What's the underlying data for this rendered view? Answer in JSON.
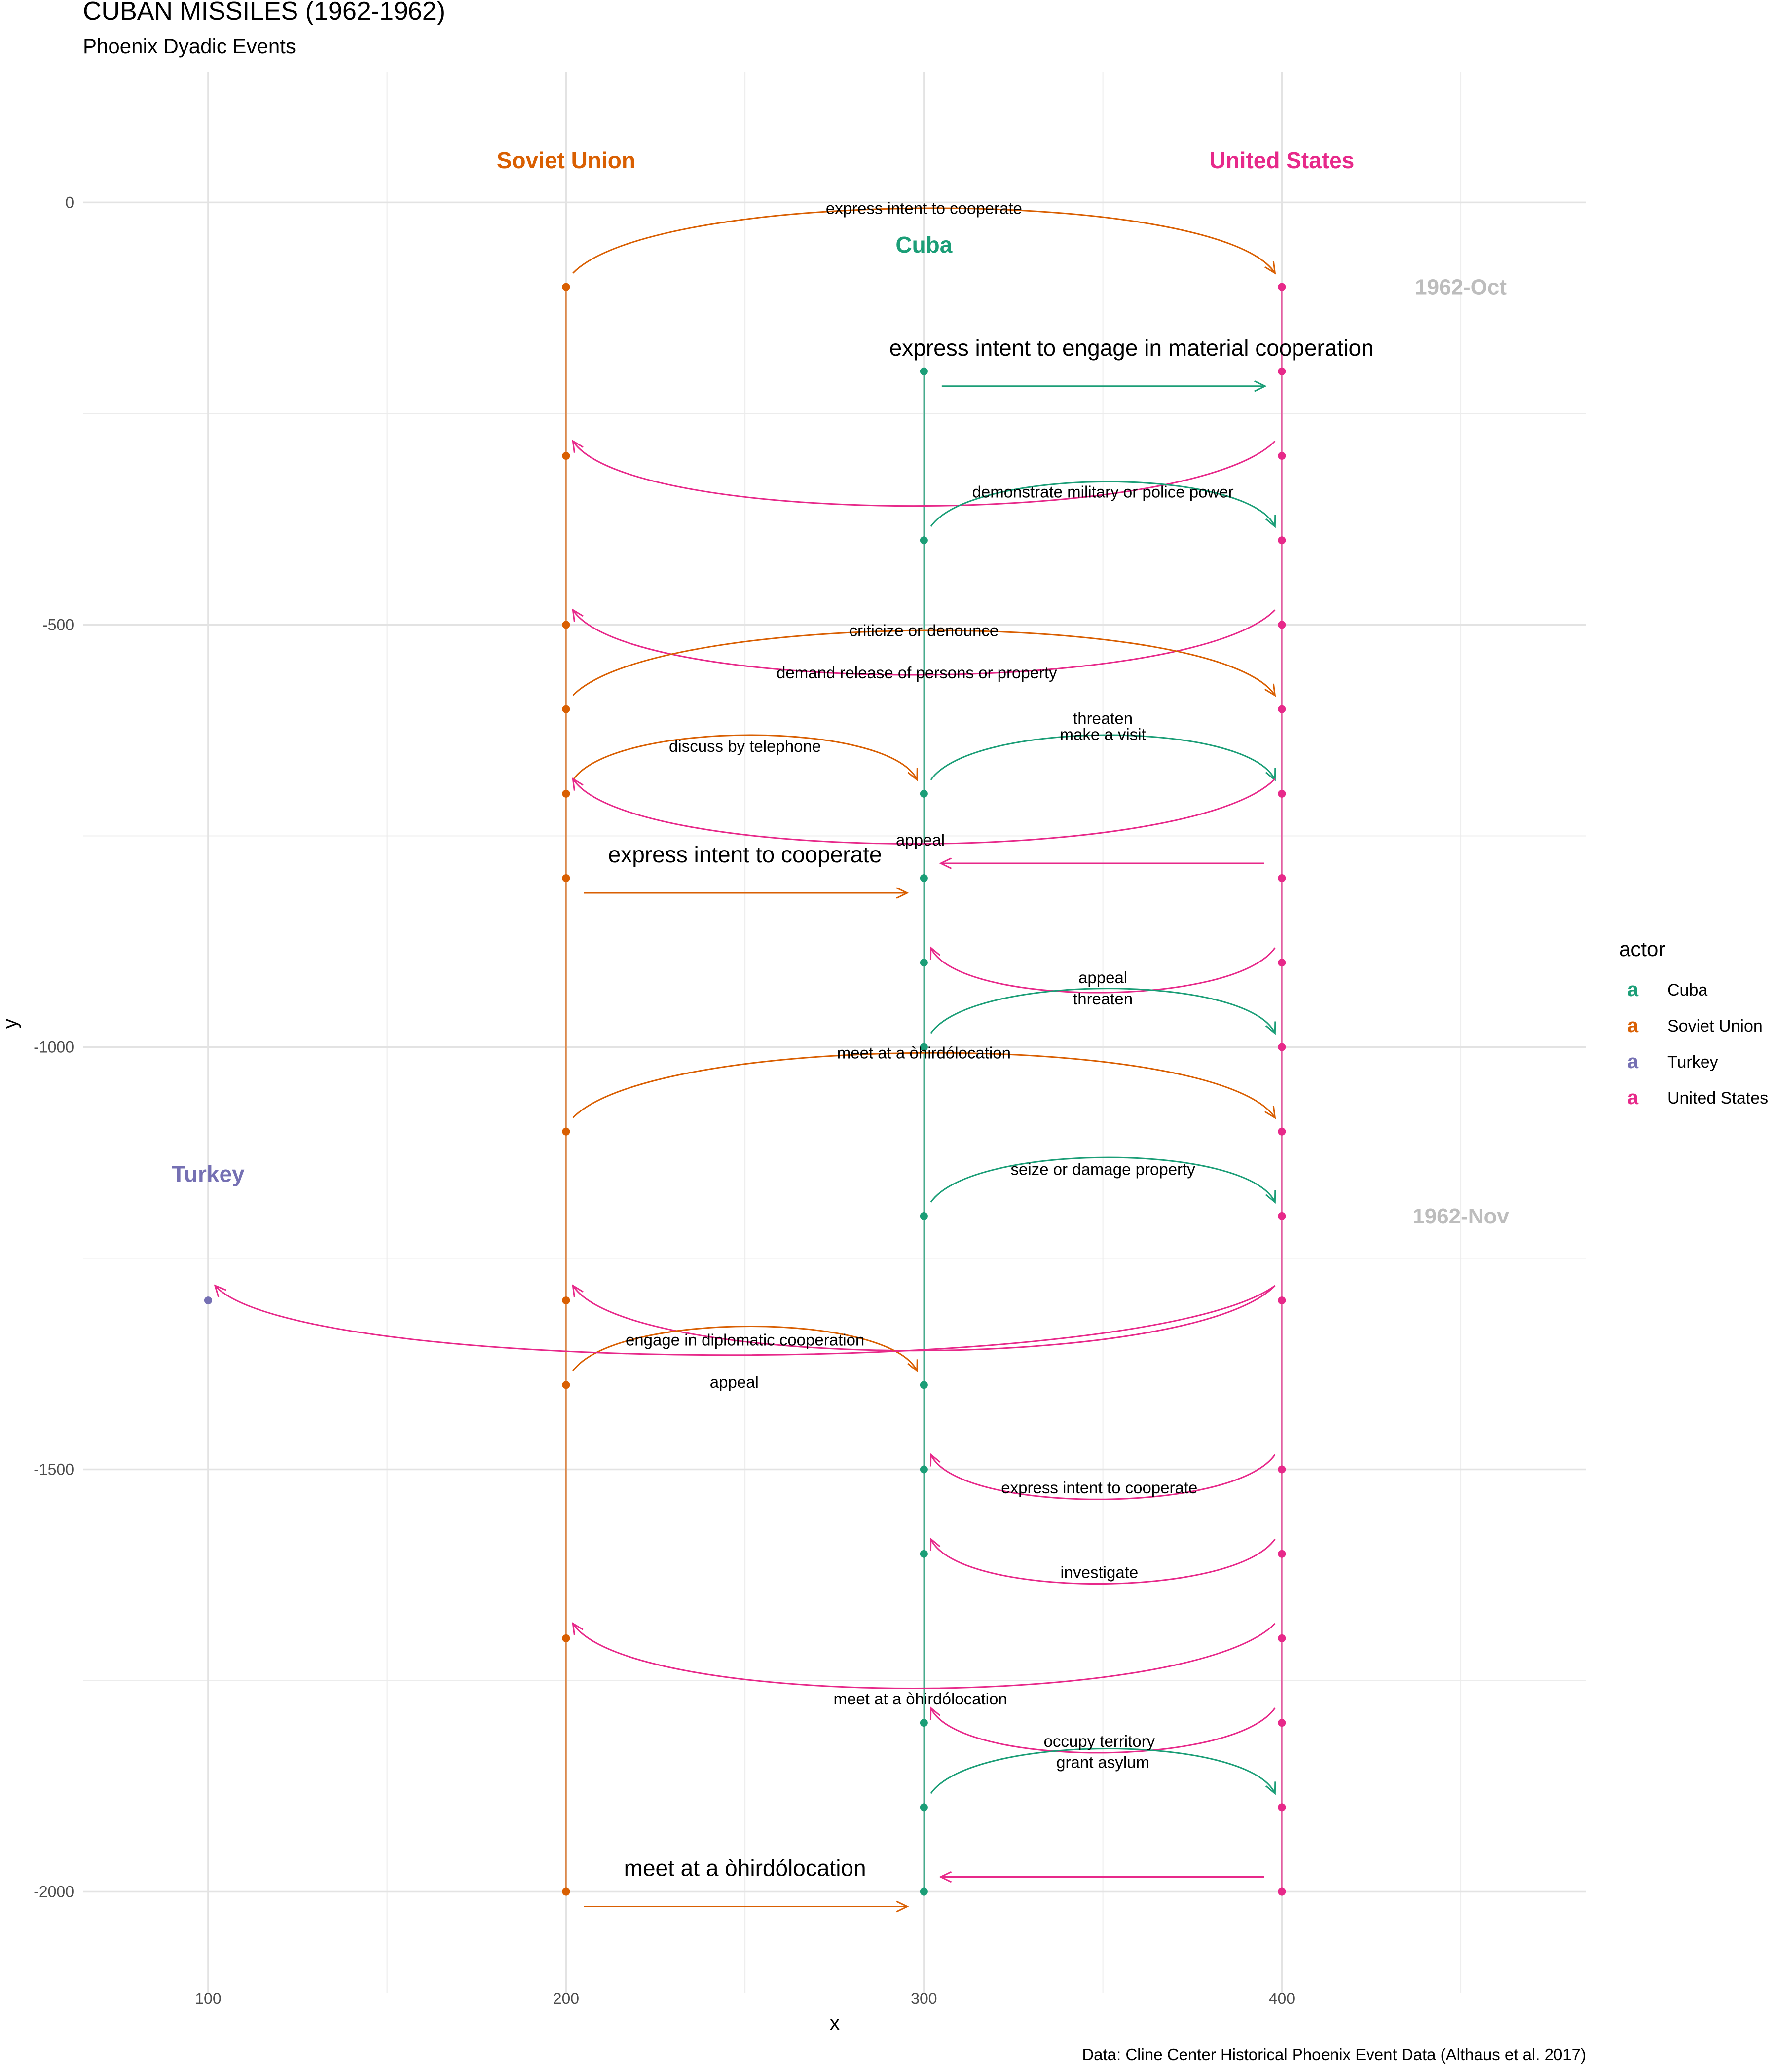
{
  "title": "CUBAN MISSILES (1962-1962)",
  "subtitle": "Phoenix Dyadic Events",
  "caption": "Data: Cline Center Historical Phoenix Event Data (Althaus et al. 2017)",
  "chart_data": {
    "type": "arc-diagram",
    "xlabel": "x",
    "ylabel": "y",
    "xlim": [
      65,
      485
    ],
    "ylim": [
      -2120,
      155
    ],
    "x_ticks": [
      100,
      200,
      300,
      400
    ],
    "y_ticks": [
      0,
      -500,
      -1000,
      -1500,
      -2000
    ],
    "x_tick_labels": [
      "100",
      "200",
      "300",
      "400"
    ],
    "y_tick_labels": [
      "0",
      "-500",
      "-1000",
      "-1500",
      "-2000"
    ],
    "grid": true,
    "legend": {
      "title": "actor",
      "position": "right",
      "key_glyph": "a",
      "items": [
        {
          "label": "Cuba",
          "color": "#1b9e77"
        },
        {
          "label": "Soviet Union",
          "color": "#d95f02"
        },
        {
          "label": "Turkey",
          "color": "#7570b3"
        },
        {
          "label": "United States",
          "color": "#e7298a"
        }
      ]
    },
    "actors": [
      {
        "name": "Soviet Union",
        "x": 200,
        "label_y": 50,
        "color": "#d95f02"
      },
      {
        "name": "United States",
        "x": 400,
        "label_y": 50,
        "color": "#e7298a"
      },
      {
        "name": "Cuba",
        "x": 300,
        "label_y": -50,
        "color": "#1b9e77"
      },
      {
        "name": "Turkey",
        "x": 100,
        "label_y": -1150,
        "color": "#7570b3"
      }
    ],
    "timelines": [
      {
        "x": 200,
        "y_start": -100,
        "y_end": -2000,
        "color": "#d95f02"
      },
      {
        "x": 300,
        "y_start": -200,
        "y_end": -2000,
        "color": "#1b9e77"
      },
      {
        "x": 400,
        "y_start": -100,
        "y_end": -2000,
        "color": "#e7298a"
      }
    ],
    "months": [
      {
        "label": "1962-Oct",
        "x": 450,
        "y": -100
      },
      {
        "label": "1962-Nov",
        "x": 450,
        "y": -1200
      }
    ],
    "points": [
      {
        "x": 200,
        "y": -100
      },
      {
        "x": 400,
        "y": -100
      },
      {
        "x": 300,
        "y": -200
      },
      {
        "x": 400,
        "y": -200
      },
      {
        "x": 200,
        "y": -300
      },
      {
        "x": 400,
        "y": -300
      },
      {
        "x": 300,
        "y": -400
      },
      {
        "x": 400,
        "y": -400
      },
      {
        "x": 200,
        "y": -500
      },
      {
        "x": 400,
        "y": -500
      },
      {
        "x": 200,
        "y": -600
      },
      {
        "x": 400,
        "y": -600
      },
      {
        "x": 200,
        "y": -700
      },
      {
        "x": 300,
        "y": -700
      },
      {
        "x": 400,
        "y": -700
      },
      {
        "x": 200,
        "y": -800
      },
      {
        "x": 300,
        "y": -800
      },
      {
        "x": 400,
        "y": -800
      },
      {
        "x": 300,
        "y": -900
      },
      {
        "x": 400,
        "y": -900
      },
      {
        "x": 300,
        "y": -1000
      },
      {
        "x": 400,
        "y": -1000
      },
      {
        "x": 200,
        "y": -1100
      },
      {
        "x": 400,
        "y": -1100
      },
      {
        "x": 300,
        "y": -1200
      },
      {
        "x": 400,
        "y": -1200
      },
      {
        "x": 100,
        "y": -1300
      },
      {
        "x": 200,
        "y": -1300
      },
      {
        "x": 400,
        "y": -1300
      },
      {
        "x": 200,
        "y": -1400
      },
      {
        "x": 300,
        "y": -1400
      },
      {
        "x": 300,
        "y": -1500
      },
      {
        "x": 400,
        "y": -1500
      },
      {
        "x": 300,
        "y": -1600
      },
      {
        "x": 400,
        "y": -1600
      },
      {
        "x": 200,
        "y": -1700
      },
      {
        "x": 400,
        "y": -1700
      },
      {
        "x": 300,
        "y": -1800
      },
      {
        "x": 400,
        "y": -1800
      },
      {
        "x": 300,
        "y": -1900
      },
      {
        "x": 400,
        "y": -1900
      },
      {
        "x": 200,
        "y": -2000
      },
      {
        "x": 300,
        "y": -2000
      },
      {
        "x": 400,
        "y": -2000
      }
    ],
    "events": [
      {
        "from": 200,
        "to": 400,
        "y": -100,
        "curve": "up",
        "color": "#d95f02",
        "label": "express intent to cooperate",
        "label_x": 300,
        "label_y": -7
      },
      {
        "from": 300,
        "to": 400,
        "y": -200,
        "curve": "straight",
        "color": "#1b9e77",
        "label": "express intent to engage in material cooperation",
        "label_x": 358,
        "label_y": -175,
        "big": true
      },
      {
        "from": 400,
        "to": 200,
        "y": -300,
        "curve": "down",
        "color": "#e7298a",
        "label": "",
        "label_x": 0,
        "label_y": 0
      },
      {
        "from": 300,
        "to": 400,
        "y": -400,
        "curve": "up",
        "color": "#1b9e77",
        "label": "demonstrate military or police power",
        "label_x": 350,
        "label_y": -343
      },
      {
        "from": 400,
        "to": 200,
        "y": -500,
        "curve": "down",
        "color": "#e7298a",
        "label": "criticize or denounce",
        "label_x": 300,
        "label_y": -507
      },
      {
        "from": 200,
        "to": 400,
        "y": -600,
        "curve": "up",
        "color": "#d95f02",
        "label": "demand release of persons or property",
        "label_x": 298,
        "label_y": -557
      },
      {
        "from": 200,
        "to": 300,
        "y": -700,
        "curve": "up",
        "color": "#d95f02",
        "label": "discuss by telephone",
        "label_x": 250,
        "label_y": -644
      },
      {
        "from": 300,
        "to": 400,
        "y": -700,
        "curve": "up",
        "color": "#1b9e77",
        "label": "threaten",
        "label_x": 350,
        "label_y": -611
      },
      {
        "from": 300,
        "to": 400,
        "y": -700,
        "curve": "none",
        "color": "#1b9e77",
        "label": "make a visit",
        "label_x": 350,
        "label_y": -630
      },
      {
        "from": 400,
        "to": 200,
        "y": -700,
        "curve": "down",
        "color": "#e7298a",
        "label": "",
        "label_x": 0,
        "label_y": 0
      },
      {
        "from": 400,
        "to": 300,
        "y": -800,
        "curve": "straight",
        "color": "#e7298a",
        "label": "appeal",
        "label_x": 299,
        "label_y": -755
      },
      {
        "from": 200,
        "to": 300,
        "y": -800,
        "curve": "straight",
        "color": "#d95f02",
        "label": "express intent to cooperate",
        "label_x": 250,
        "label_y": -775,
        "big": true
      },
      {
        "from": 400,
        "to": 300,
        "y": -900,
        "curve": "down",
        "color": "#e7298a",
        "label": "appeal",
        "label_x": 350,
        "label_y": -918
      },
      {
        "from": 300,
        "to": 400,
        "y": -1000,
        "curve": "up",
        "color": "#1b9e77",
        "label": "threaten",
        "label_x": 350,
        "label_y": -943
      },
      {
        "from": 200,
        "to": 400,
        "y": -1100,
        "curve": "up",
        "color": "#d95f02",
        "label": "meet at a òhirdólocation",
        "label_x": 300,
        "label_y": -1007
      },
      {
        "from": 300,
        "to": 400,
        "y": -1200,
        "curve": "up",
        "color": "#1b9e77",
        "label": "seize or damage property",
        "label_x": 350,
        "label_y": -1145
      },
      {
        "from": 400,
        "to": 200,
        "y": -1300,
        "curve": "down",
        "color": "#e7298a",
        "label": "engage in diplomatic cooperation",
        "label_x": 250,
        "label_y": -1347
      },
      {
        "from": 200,
        "to": 300,
        "y": -1400,
        "curve": "up",
        "color": "#d95f02",
        "label": "",
        "label_x": 0,
        "label_y": 0
      },
      {
        "from": 400,
        "to": 100,
        "y": -1300,
        "curve": "down",
        "color": "#e7298a",
        "label": "appeal",
        "label_x": 247,
        "label_y": -1397
      },
      {
        "from": 400,
        "to": 300,
        "y": -1500,
        "curve": "down",
        "color": "#e7298a",
        "label": "express intent to cooperate",
        "label_x": 349,
        "label_y": -1522
      },
      {
        "from": 400,
        "to": 300,
        "y": -1600,
        "curve": "down",
        "color": "#e7298a",
        "label": "investigate",
        "label_x": 349,
        "label_y": -1622
      },
      {
        "from": 400,
        "to": 200,
        "y": -1700,
        "curve": "down",
        "color": "#e7298a",
        "label": "meet at a òhirdólocation",
        "label_x": 299,
        "label_y": -1772
      },
      {
        "from": 400,
        "to": 300,
        "y": -1800,
        "curve": "down",
        "color": "#e7298a",
        "label": "occupy territory",
        "label_x": 349,
        "label_y": -1822
      },
      {
        "from": 300,
        "to": 400,
        "y": -1900,
        "curve": "up",
        "color": "#1b9e77",
        "label": "grant asylum",
        "label_x": 350,
        "label_y": -1847
      },
      {
        "from": 400,
        "to": 300,
        "y": -2000,
        "curve": "straight",
        "color": "#e7298a",
        "label": "",
        "label_x": 0,
        "label_y": 0
      },
      {
        "from": 200,
        "to": 300,
        "y": -2000,
        "curve": "straight",
        "color": "#d95f02",
        "label": "meet at a òhirdólocation",
        "label_x": 250,
        "label_y": -1975,
        "big": true
      }
    ]
  }
}
